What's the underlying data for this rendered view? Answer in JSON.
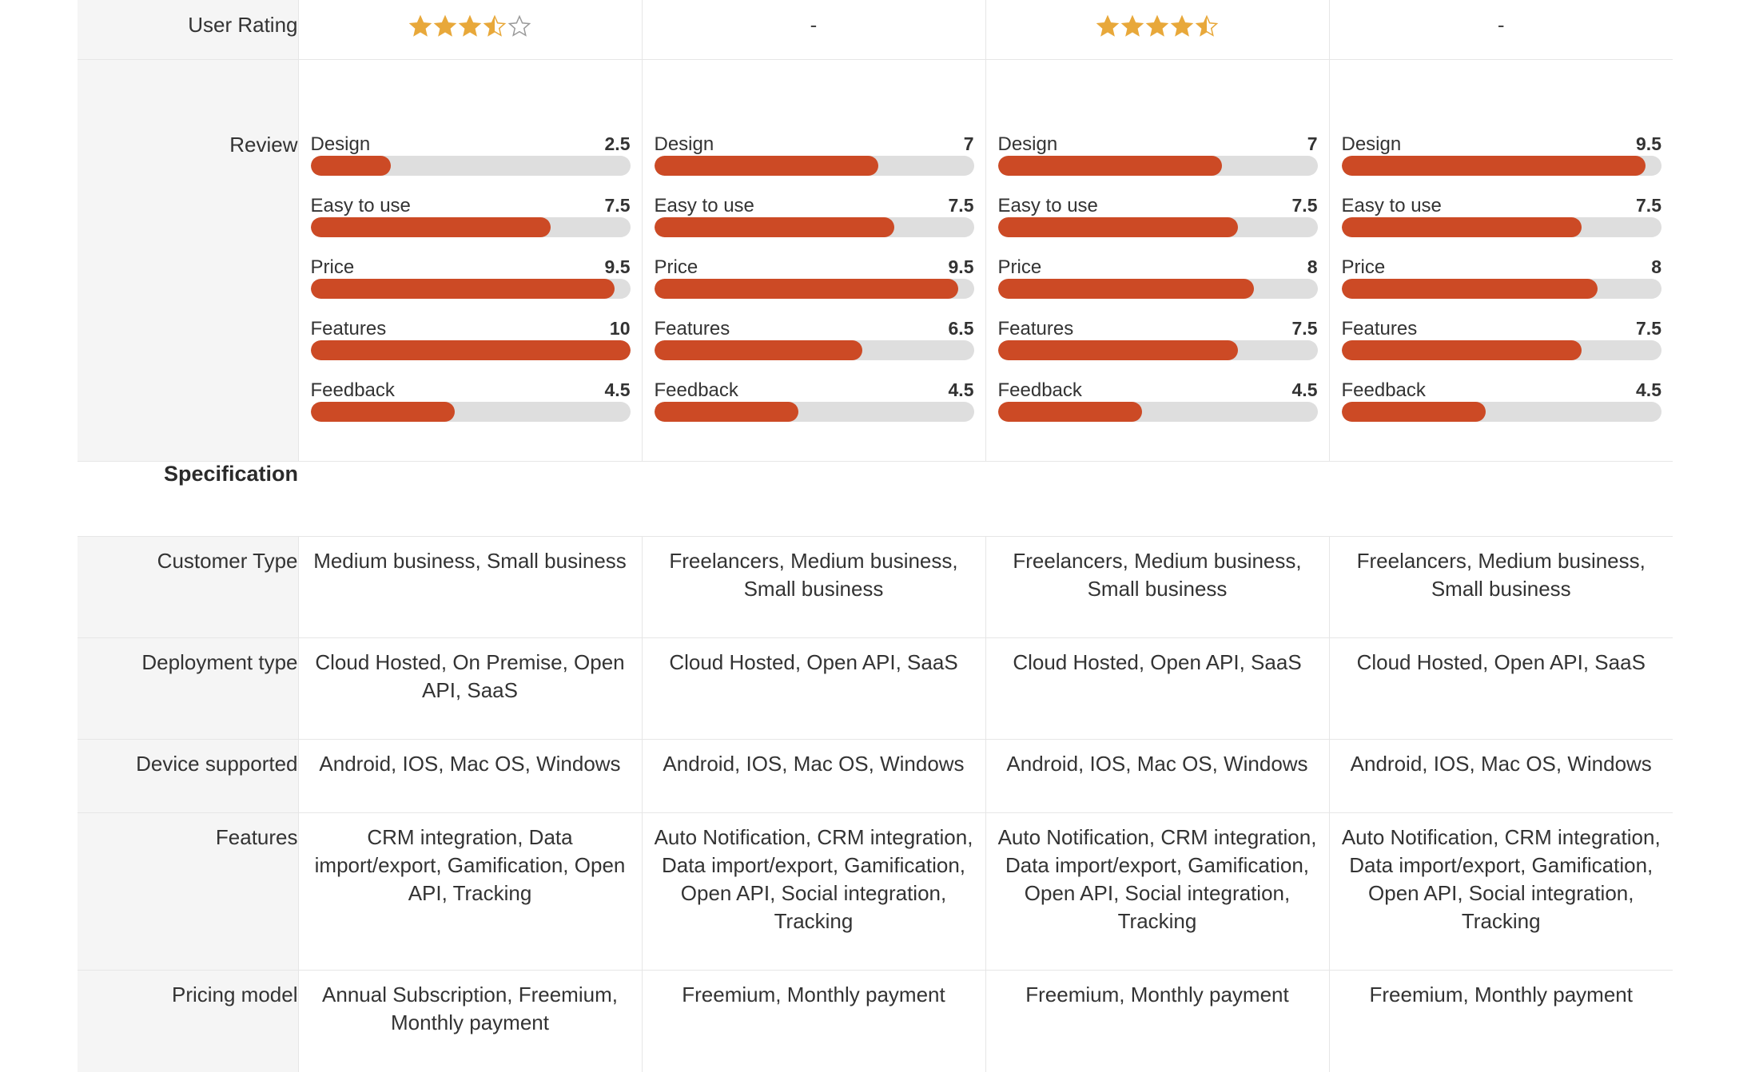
{
  "rating_row": {
    "label": "User Rating",
    "products": [
      {
        "stars": 3.5,
        "text": ""
      },
      {
        "stars": null,
        "text": "-"
      },
      {
        "stars": 4.5,
        "text": ""
      },
      {
        "stars": null,
        "text": "-"
      }
    ]
  },
  "review_row": {
    "label": "Review",
    "products": [
      {
        "criteria": [
          {
            "name": "Design",
            "score": "2.5",
            "value": 2.5
          },
          {
            "name": "Easy to use",
            "score": "7.5",
            "value": 7.5
          },
          {
            "name": "Price",
            "score": "9.5",
            "value": 9.5
          },
          {
            "name": "Features",
            "score": "10",
            "value": 10
          },
          {
            "name": "Feedback",
            "score": "4.5",
            "value": 4.5
          }
        ]
      },
      {
        "criteria": [
          {
            "name": "Design",
            "score": "7",
            "value": 7
          },
          {
            "name": "Easy to use",
            "score": "7.5",
            "value": 7.5
          },
          {
            "name": "Price",
            "score": "9.5",
            "value": 9.5
          },
          {
            "name": "Features",
            "score": "6.5",
            "value": 6.5
          },
          {
            "name": "Feedback",
            "score": "4.5",
            "value": 4.5
          }
        ]
      },
      {
        "criteria": [
          {
            "name": "Design",
            "score": "7",
            "value": 7
          },
          {
            "name": "Easy to use",
            "score": "7.5",
            "value": 7.5
          },
          {
            "name": "Price",
            "score": "8",
            "value": 8
          },
          {
            "name": "Features",
            "score": "7.5",
            "value": 7.5
          },
          {
            "name": "Feedback",
            "score": "4.5",
            "value": 4.5
          }
        ]
      },
      {
        "criteria": [
          {
            "name": "Design",
            "score": "9.5",
            "value": 9.5
          },
          {
            "name": "Easy to use",
            "score": "7.5",
            "value": 7.5
          },
          {
            "name": "Price",
            "score": "8",
            "value": 8
          },
          {
            "name": "Features",
            "score": "7.5",
            "value": 7.5
          },
          {
            "name": "Feedback",
            "score": "4.5",
            "value": 4.5
          }
        ]
      }
    ],
    "max_score": 10
  },
  "specification": {
    "title": "Specification",
    "rows": [
      {
        "label": "Customer Type",
        "values": [
          "Medium business, Small business",
          "Freelancers, Medium business, Small business",
          "Freelancers, Medium business, Small business",
          "Freelancers, Medium business, Small business"
        ]
      },
      {
        "label": "Deployment type",
        "values": [
          "Cloud Hosted, On Premise, Open API, SaaS",
          "Cloud Hosted, Open API, SaaS",
          "Cloud Hosted, Open API, SaaS",
          "Cloud Hosted, Open API, SaaS"
        ]
      },
      {
        "label": "Device supported",
        "values": [
          "Android, IOS, Mac OS, Windows",
          "Android, IOS, Mac OS, Windows",
          "Android, IOS, Mac OS, Windows",
          "Android, IOS, Mac OS, Windows"
        ]
      },
      {
        "label": "Features",
        "values": [
          "CRM integration, Data import/export, Gamification, Open API, Tracking",
          "Auto Notification, CRM integration, Data import/export, Gamification, Open API, Social integration, Tracking",
          "Auto Notification, CRM integration, Data import/export, Gamification, Open API, Social integration, Tracking",
          "Auto Notification, CRM integration, Data import/export, Gamification, Open API, Social integration, Tracking"
        ]
      },
      {
        "label": "Pricing model",
        "values": [
          "Annual Subscription, Freemium, Monthly payment",
          "Freemium, Monthly payment",
          "Freemium, Monthly payment",
          "Freemium, Monthly payment"
        ]
      }
    ]
  },
  "colors": {
    "bar_fill": "#cc4a25",
    "bar_track": "#dedede",
    "star": "#e8a83a",
    "label_bg": "#f5f5f5"
  }
}
